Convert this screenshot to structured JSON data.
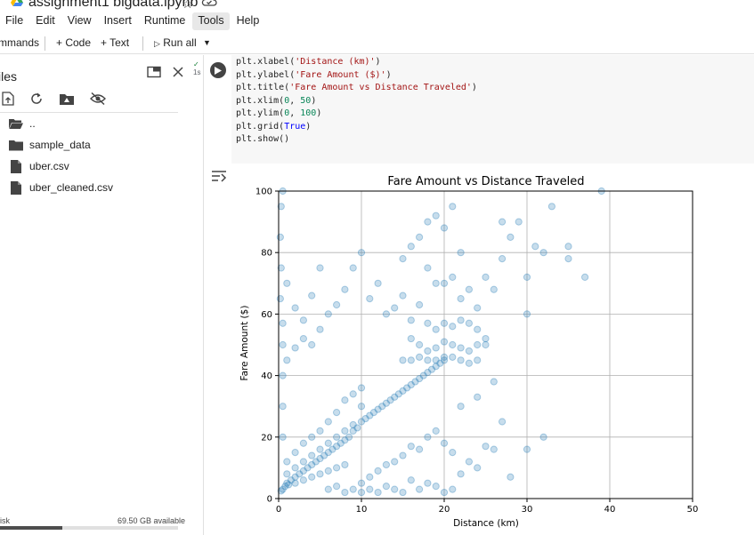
{
  "window": {
    "title": "assignment1 bigdata.ipynb",
    "logo_icon": "google-drive-icon",
    "star_icon": "star-icon",
    "cloud_icon": "cloud-saved-icon"
  },
  "menu": {
    "items": [
      {
        "label": "File"
      },
      {
        "label": "Edit"
      },
      {
        "label": "View"
      },
      {
        "label": "Insert"
      },
      {
        "label": "Runtime"
      },
      {
        "label": "Tools",
        "active": true
      },
      {
        "label": "Help"
      }
    ]
  },
  "toolbar": {
    "commands_label": "mmands",
    "add_code_label": "+ Code",
    "add_text_label": "+ Text",
    "run_all_label": "Run all"
  },
  "sidebar": {
    "title": "iles",
    "files": [
      {
        "name": "..",
        "type": "folder-open"
      },
      {
        "name": "sample_data",
        "type": "folder"
      },
      {
        "name": "uber.csv",
        "type": "file"
      },
      {
        "name": "uber_cleaned.csv",
        "type": "file"
      }
    ],
    "disk_label": "isk",
    "disk_available": "69.50 GB available",
    "disk_used_fraction": 0.35
  },
  "cell": {
    "status_check": "✓",
    "status_time": "1s",
    "code_lines": [
      [
        {
          "t": "plt.xlabel("
        },
        {
          "t": "'Distance (km)'",
          "c": "str"
        },
        {
          "t": ")"
        }
      ],
      [
        {
          "t": "plt.ylabel("
        },
        {
          "t": "'Fare Amount ($)'",
          "c": "str"
        },
        {
          "t": ")"
        }
      ],
      [
        {
          "t": "plt.title("
        },
        {
          "t": "'Fare Amount vs Distance Traveled'",
          "c": "str"
        },
        {
          "t": ")"
        }
      ],
      [
        {
          "t": "plt.xlim("
        },
        {
          "t": "0",
          "c": "num"
        },
        {
          "t": ", "
        },
        {
          "t": "50",
          "c": "num"
        },
        {
          "t": ")"
        }
      ],
      [
        {
          "t": "plt.ylim("
        },
        {
          "t": "0",
          "c": "num"
        },
        {
          "t": ", "
        },
        {
          "t": "100",
          "c": "num"
        },
        {
          "t": ")"
        }
      ],
      [
        {
          "t": "plt.grid("
        },
        {
          "t": "True",
          "c": "kw"
        },
        {
          "t": ")"
        }
      ],
      [
        {
          "t": "plt.show()"
        }
      ]
    ]
  },
  "chart_data": {
    "type": "scatter",
    "title": "Fare Amount vs Distance Traveled",
    "xlabel": "Distance (km)",
    "ylabel": "Fare Amount ($)",
    "xlim": [
      0,
      50
    ],
    "ylim": [
      0,
      100
    ],
    "xticks": [
      0,
      10,
      20,
      30,
      40,
      50
    ],
    "yticks": [
      0,
      20,
      40,
      60,
      80,
      100
    ],
    "grid": true,
    "color": "#1f77b4",
    "alpha": 0.25,
    "series": [
      {
        "points": [
          [
            0.5,
            3
          ],
          [
            1,
            5
          ],
          [
            1.5,
            6
          ],
          [
            2,
            7
          ],
          [
            2.5,
            8
          ],
          [
            3,
            9
          ],
          [
            3.5,
            10
          ],
          [
            4,
            11
          ],
          [
            4.5,
            12
          ],
          [
            5,
            13
          ],
          [
            5.5,
            14
          ],
          [
            6,
            15
          ],
          [
            6.5,
            16
          ],
          [
            7,
            17
          ],
          [
            7.5,
            18
          ],
          [
            8,
            19
          ],
          [
            8.5,
            20
          ],
          [
            9,
            22
          ],
          [
            9.5,
            23
          ],
          [
            10,
            25
          ],
          [
            10.5,
            26
          ],
          [
            11,
            27
          ],
          [
            11.5,
            28
          ],
          [
            12,
            29
          ],
          [
            12.5,
            30
          ],
          [
            13,
            31
          ],
          [
            13.5,
            32
          ],
          [
            14,
            33
          ],
          [
            14.5,
            34
          ],
          [
            15,
            35
          ],
          [
            15.5,
            36
          ],
          [
            16,
            37
          ],
          [
            16.5,
            38
          ],
          [
            17,
            39
          ],
          [
            17.5,
            40
          ],
          [
            18,
            41
          ],
          [
            18.5,
            42
          ],
          [
            19,
            43
          ],
          [
            19.5,
            44
          ],
          [
            20,
            46
          ],
          [
            0.3,
            2.5
          ],
          [
            0.8,
            4
          ],
          [
            1.2,
            4.5
          ],
          [
            2,
            5
          ],
          [
            3,
            6
          ],
          [
            4,
            7
          ],
          [
            5,
            8
          ],
          [
            6,
            9
          ],
          [
            7,
            10
          ],
          [
            8,
            11
          ],
          [
            1,
            8
          ],
          [
            2,
            10
          ],
          [
            3,
            12
          ],
          [
            4,
            14
          ],
          [
            5,
            16
          ],
          [
            6,
            18
          ],
          [
            7,
            20
          ],
          [
            8,
            22
          ],
          [
            9,
            24
          ],
          [
            10,
            30
          ],
          [
            1,
            12
          ],
          [
            2,
            15
          ],
          [
            3,
            18
          ],
          [
            4,
            20
          ],
          [
            5,
            22
          ],
          [
            6,
            25
          ],
          [
            7,
            28
          ],
          [
            8,
            32
          ],
          [
            9,
            34
          ],
          [
            10,
            36
          ],
          [
            0.5,
            20
          ],
          [
            0.5,
            30
          ],
          [
            0.5,
            40
          ],
          [
            0.5,
            50
          ],
          [
            0.5,
            57
          ],
          [
            1,
            45
          ],
          [
            2,
            49
          ],
          [
            3,
            52
          ],
          [
            4,
            50
          ],
          [
            5,
            55
          ],
          [
            0.2,
            65
          ],
          [
            0.3,
            75
          ],
          [
            0.2,
            85
          ],
          [
            0.3,
            95
          ],
          [
            0.5,
            100
          ],
          [
            1,
            70
          ],
          [
            2,
            62
          ],
          [
            3,
            58
          ],
          [
            4,
            66
          ],
          [
            5,
            75
          ],
          [
            6,
            60
          ],
          [
            7,
            63
          ],
          [
            8,
            68
          ],
          [
            9,
            75
          ],
          [
            10,
            80
          ],
          [
            11,
            65
          ],
          [
            12,
            70
          ],
          [
            13,
            60
          ],
          [
            14,
            62
          ],
          [
            15,
            66
          ],
          [
            16,
            58
          ],
          [
            17,
            63
          ],
          [
            18,
            57
          ],
          [
            19,
            55
          ],
          [
            20,
            57
          ],
          [
            21,
            56
          ],
          [
            22,
            58
          ],
          [
            23,
            57
          ],
          [
            24,
            55
          ],
          [
            25,
            52
          ],
          [
            16,
            52
          ],
          [
            17,
            50
          ],
          [
            18,
            48
          ],
          [
            19,
            49
          ],
          [
            20,
            51
          ],
          [
            21,
            50
          ],
          [
            22,
            49
          ],
          [
            23,
            48
          ],
          [
            24,
            50
          ],
          [
            25,
            50
          ],
          [
            15,
            45
          ],
          [
            16,
            45
          ],
          [
            17,
            46
          ],
          [
            18,
            45
          ],
          [
            19,
            45
          ],
          [
            20,
            45
          ],
          [
            21,
            46
          ],
          [
            22,
            45
          ],
          [
            23,
            44
          ],
          [
            24,
            45
          ],
          [
            17,
            85
          ],
          [
            18,
            90
          ],
          [
            19,
            92
          ],
          [
            20,
            88
          ],
          [
            21,
            95
          ],
          [
            22,
            80
          ],
          [
            15,
            78
          ],
          [
            16,
            82
          ],
          [
            18,
            75
          ],
          [
            19,
            70
          ],
          [
            20,
            70
          ],
          [
            21,
            72
          ],
          [
            22,
            65
          ],
          [
            23,
            68
          ],
          [
            24,
            62
          ],
          [
            25,
            72
          ],
          [
            26,
            68
          ],
          [
            27,
            78
          ],
          [
            28,
            85
          ],
          [
            29,
            90
          ],
          [
            30,
            60
          ],
          [
            30,
            72
          ],
          [
            31,
            82
          ],
          [
            32,
            80
          ],
          [
            33,
            95
          ],
          [
            35,
            78
          ],
          [
            35,
            82
          ],
          [
            37,
            72
          ],
          [
            39,
            100
          ],
          [
            27,
            90
          ],
          [
            10,
            5
          ],
          [
            11,
            7
          ],
          [
            12,
            9
          ],
          [
            13,
            11
          ],
          [
            14,
            12
          ],
          [
            15,
            14
          ],
          [
            16,
            17
          ],
          [
            17,
            16
          ],
          [
            18,
            20
          ],
          [
            19,
            22
          ],
          [
            20,
            18
          ],
          [
            21,
            15
          ],
          [
            21,
            3
          ],
          [
            20,
            2
          ],
          [
            19,
            4
          ],
          [
            18,
            5
          ],
          [
            17,
            3
          ],
          [
            16,
            6
          ],
          [
            22,
            8
          ],
          [
            23,
            12
          ],
          [
            24,
            10
          ],
          [
            25,
            17
          ],
          [
            26,
            16
          ],
          [
            28,
            7
          ],
          [
            30,
            16
          ],
          [
            32,
            20
          ],
          [
            27,
            25
          ],
          [
            26,
            38
          ],
          [
            24,
            33
          ],
          [
            22,
            30
          ],
          [
            6,
            3
          ],
          [
            7,
            4
          ],
          [
            8,
            2
          ],
          [
            9,
            3
          ],
          [
            10,
            2
          ],
          [
            11,
            3
          ],
          [
            12,
            2
          ],
          [
            13,
            4
          ],
          [
            14,
            3
          ],
          [
            15,
            2
          ]
        ]
      }
    ]
  }
}
